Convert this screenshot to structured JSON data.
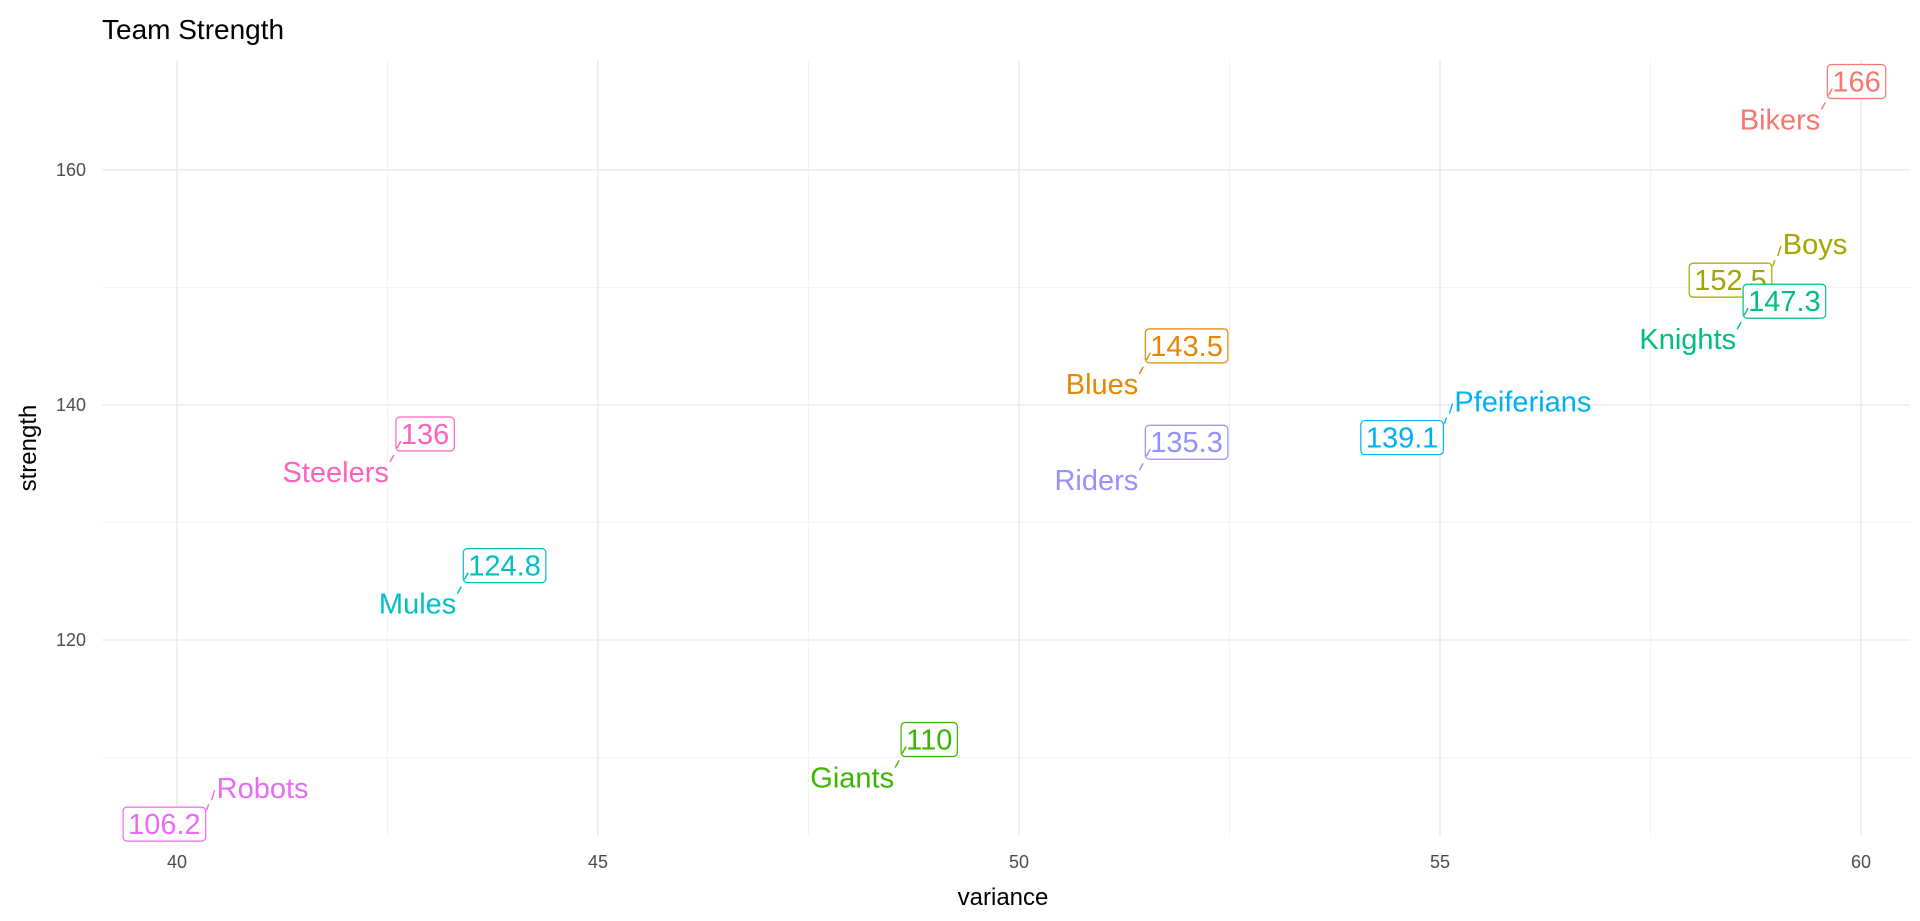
{
  "chart_data": {
    "type": "scatter",
    "title": "Team Strength",
    "xlabel": "variance",
    "ylabel": "strength",
    "xlim": [
      39.1,
      60.6
    ],
    "ylim": [
      103.2,
      168.7
    ],
    "x_ticks": [
      40,
      45,
      50,
      55,
      60
    ],
    "y_ticks": [
      120,
      140,
      160
    ],
    "grid": true,
    "legend": "none",
    "points": [
      {
        "team": "Bikers",
        "value_label": "166",
        "variance": 59.6,
        "strength": 166.0,
        "color": "#F8766D",
        "team_pos": "left-below",
        "value_pos": "above-right"
      },
      {
        "team": "Boys",
        "value_label": "152.5",
        "variance": 59.0,
        "strength": 152.5,
        "color": "#A3A500",
        "team_pos": "right-above",
        "value_pos": "below-left"
      },
      {
        "team": "Knights",
        "value_label": "147.3",
        "variance": 58.6,
        "strength": 147.3,
        "color": "#00BF7D",
        "team_pos": "left-below",
        "value_pos": "above-right"
      },
      {
        "team": "Pfeiferians",
        "value_label": "139.1",
        "variance": 55.1,
        "strength": 139.1,
        "color": "#00B0F6",
        "team_pos": "right-above",
        "value_pos": "below-left"
      },
      {
        "team": "Blues",
        "value_label": "143.5",
        "variance": 51.5,
        "strength": 143.5,
        "color": "#E58700",
        "team_pos": "left-below",
        "value_pos": "above-right"
      },
      {
        "team": "Riders",
        "value_label": "135.3",
        "variance": 51.5,
        "strength": 135.3,
        "color": "#9590FF",
        "team_pos": "left-below",
        "value_pos": "above-right"
      },
      {
        "team": "Steelers",
        "value_label": "136",
        "variance": 42.6,
        "strength": 136.0,
        "color": "#FF62BC",
        "team_pos": "left-below",
        "value_pos": "above-right"
      },
      {
        "team": "Mules",
        "value_label": "124.8",
        "variance": 43.4,
        "strength": 124.8,
        "color": "#00BFC4",
        "team_pos": "left-below",
        "value_pos": "above-right"
      },
      {
        "team": "Giants",
        "value_label": "110",
        "variance": 48.6,
        "strength": 110.0,
        "color": "#39B600",
        "team_pos": "left-below",
        "value_pos": "above-right"
      },
      {
        "team": "Robots",
        "value_label": "106.2",
        "variance": 40.4,
        "strength": 106.2,
        "color": "#E76BF3",
        "team_pos": "right-above",
        "value_pos": "below-left"
      }
    ]
  }
}
